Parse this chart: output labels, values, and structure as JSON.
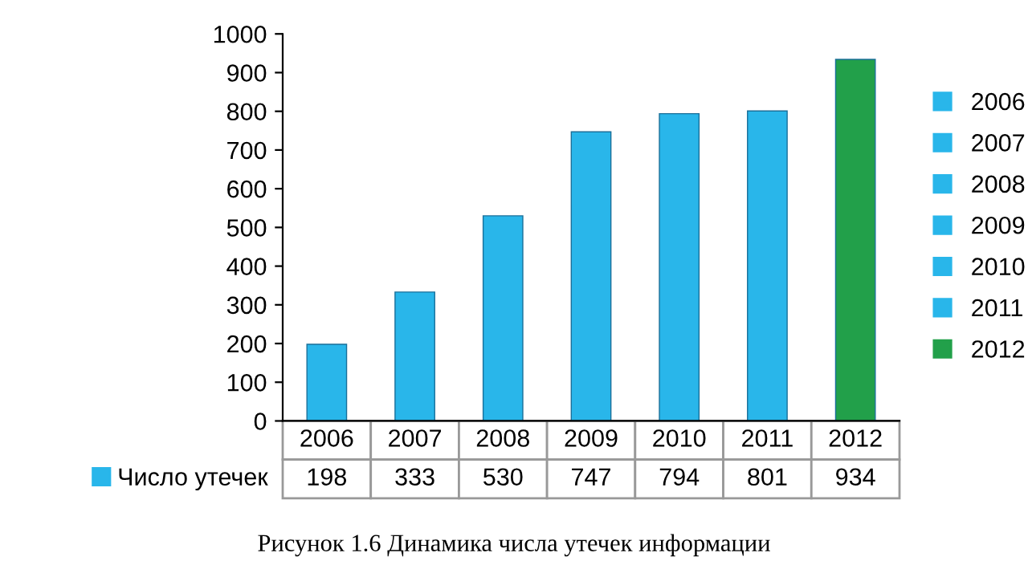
{
  "chart_data": {
    "type": "bar",
    "title": "Рисунок 1.6 Динамика числа утечек информации",
    "categories": [
      "2006",
      "2007",
      "2008",
      "2009",
      "2010",
      "2011",
      "2012"
    ],
    "series": [
      {
        "name": "Число утечек",
        "color": "#29b6ea",
        "colors": [
          "#29b6ea",
          "#29b6ea",
          "#29b6ea",
          "#29b6ea",
          "#29b6ea",
          "#29b6ea",
          "#22a04a"
        ],
        "values": [
          198,
          333,
          530,
          747,
          794,
          801,
          934
        ]
      }
    ],
    "ylim": [
      0,
      1000
    ],
    "yticks": [
      0,
      100,
      200,
      300,
      400,
      500,
      600,
      700,
      800,
      900,
      1000
    ],
    "data_labels": true,
    "legend": "bottom left",
    "grid": false
  }
}
